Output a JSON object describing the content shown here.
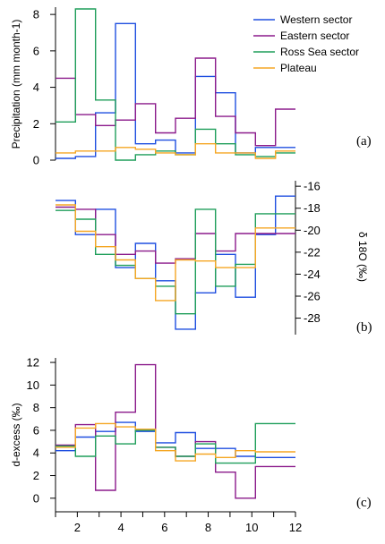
{
  "chart_data": [
    {
      "type": "line",
      "panel_label": "(a)",
      "ylabel": "Precipitation (mm month-1)",
      "x": [
        1,
        2,
        3,
        4,
        5,
        6,
        7,
        8,
        9,
        10,
        11,
        12
      ],
      "ylim": [
        0,
        8.4
      ],
      "yticks": [
        "0",
        "2",
        "4",
        "6",
        "8"
      ],
      "step": true,
      "legend_position": "top-right",
      "series": [
        {
          "name": "Western sector",
          "color": "#1f4fe0",
          "values": [
            0.1,
            0.2,
            2.6,
            7.5,
            0.9,
            1.1,
            0.4,
            4.6,
            3.7,
            0.4,
            0.7,
            0.7
          ]
        },
        {
          "name": "Eastern sector",
          "color": "#8b1a8b",
          "values": [
            4.5,
            2.5,
            1.9,
            2.2,
            3.1,
            1.5,
            2.3,
            5.6,
            2.4,
            1.5,
            0.8,
            2.8
          ]
        },
        {
          "name": "Ross Sea sector",
          "color": "#1f9e5a",
          "values": [
            2.1,
            8.3,
            3.3,
            0.0,
            0.3,
            0.5,
            0.3,
            1.7,
            0.9,
            0.3,
            0.2,
            0.4
          ]
        },
        {
          "name": "Plateau",
          "color": "#f5a623",
          "values": [
            0.4,
            0.5,
            0.5,
            0.7,
            0.6,
            0.4,
            0.3,
            0.9,
            0.4,
            0.4,
            0.1,
            0.5
          ]
        }
      ]
    },
    {
      "type": "line",
      "panel_label": "(b)",
      "ylabel": "δ 18O (‰)",
      "yaxis_side": "right",
      "ylim": [
        -29.5,
        -15.5
      ],
      "yticks": [
        "-16",
        "-18",
        "-20",
        "-22",
        "-24",
        "-26",
        "-28"
      ],
      "step": true,
      "series": [
        {
          "name": "Western sector",
          "color": "#1f4fe0",
          "values": [
            -17.3,
            -20.4,
            -18.1,
            -23.4,
            -21.2,
            -24.6,
            -29.0,
            -25.7,
            -22.2,
            -26.1,
            -20.4,
            -16.9
          ]
        },
        {
          "name": "Eastern sector",
          "color": "#8b1a8b",
          "values": [
            -17.9,
            -18.1,
            -20.4,
            -22.2,
            -21.9,
            -23.0,
            -22.6,
            -20.3,
            -21.9,
            -20.3,
            -20.3,
            -20.3
          ]
        },
        {
          "name": "Ross Sea sector",
          "color": "#1f9e5a",
          "values": [
            -18.2,
            -19.0,
            -22.2,
            -23.2,
            -24.4,
            -25.1,
            -27.6,
            -18.1,
            -25.1,
            -23.1,
            -18.5,
            -18.5
          ]
        },
        {
          "name": "Plateau",
          "color": "#f5a623",
          "values": [
            -17.7,
            -20.1,
            -21.5,
            -22.7,
            -24.4,
            -26.4,
            -22.7,
            -22.8,
            -23.4,
            -23.4,
            -19.8,
            -19.8
          ]
        }
      ]
    },
    {
      "type": "line",
      "panel_label": "(c)",
      "ylabel": "d-excess (‰)",
      "ylim": [
        -1.2,
        12.4
      ],
      "yticks": [
        "0",
        "2",
        "4",
        "6",
        "8",
        "10",
        "12"
      ],
      "xticks": [
        "2",
        "4",
        "6",
        "8",
        "10",
        "12"
      ],
      "step": true,
      "series": [
        {
          "name": "Western sector",
          "color": "#1f4fe0",
          "values": [
            4.2,
            5.4,
            5.9,
            6.7,
            5.9,
            4.9,
            5.8,
            4.4,
            4.4,
            3.7,
            3.6,
            3.6
          ]
        },
        {
          "name": "Eastern sector",
          "color": "#8b1a8b",
          "values": [
            4.7,
            6.5,
            0.7,
            7.6,
            11.8,
            4.5,
            3.7,
            5.0,
            2.3,
            0.0,
            2.8,
            2.8
          ]
        },
        {
          "name": "Ross Sea sector",
          "color": "#1f9e5a",
          "values": [
            4.6,
            3.7,
            5.5,
            4.8,
            6.0,
            4.5,
            3.7,
            4.8,
            3.1,
            3.1,
            6.6,
            6.6
          ]
        },
        {
          "name": "Plateau",
          "color": "#f5a623",
          "values": [
            4.5,
            6.2,
            6.6,
            6.3,
            6.1,
            4.2,
            3.3,
            3.9,
            3.6,
            4.2,
            4.1,
            4.1
          ]
        }
      ]
    }
  ]
}
